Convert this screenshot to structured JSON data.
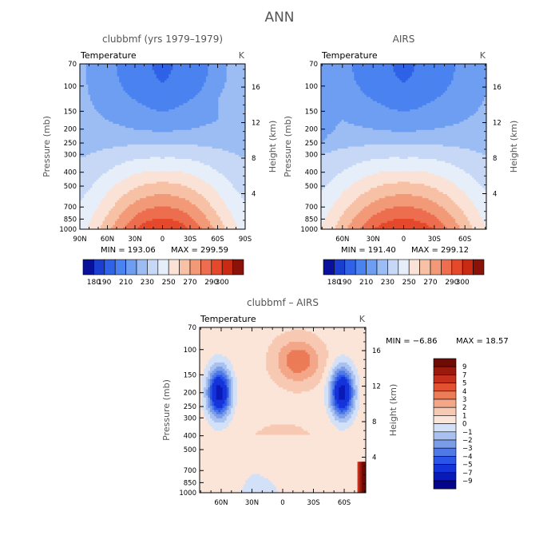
{
  "chart_data": {
    "type": "contour",
    "title": "ANN",
    "variable": "Temperature",
    "units": "K",
    "y_left_label": "Pressure (mb)",
    "y_right_label": "Height (km)",
    "pressure_ticks": [
      "70",
      "100",
      "150",
      "200",
      "250",
      "300",
      "400",
      "500",
      "700",
      "850",
      "1000"
    ],
    "height_ticks": [
      "4",
      "8",
      "12",
      "16"
    ],
    "panels": [
      {
        "id": "model",
        "title": "clubbmf (yrs 1979–1979)",
        "x_ticks": [
          "90N",
          "60N",
          "30N",
          "0",
          "30S",
          "60S",
          "90S"
        ],
        "min_label": "MIN = 193.06",
        "max_label": "MAX = 299.59",
        "min": 193.06,
        "max": 299.59,
        "colorbar_labels": [
          "180",
          "190",
          "210",
          "230",
          "250",
          "270",
          "290",
          "300"
        ]
      },
      {
        "id": "obs",
        "title": "AIRS",
        "x_ticks": [
          "60N",
          "30N",
          "0",
          "30S",
          "60S"
        ],
        "min_label": "MIN = 191.40",
        "max_label": "MAX = 299.12",
        "min": 191.4,
        "max": 299.12,
        "colorbar_labels": [
          "180",
          "190",
          "210",
          "230",
          "250",
          "270",
          "290",
          "300"
        ]
      },
      {
        "id": "diff",
        "title": "clubbmf – AIRS",
        "x_ticks": [
          "60N",
          "30N",
          "0",
          "30S",
          "60S"
        ],
        "min_label": "MIN =   −6.86",
        "max_label": "MAX =   18.57",
        "min": -6.86,
        "max": 18.57,
        "colorbar_labels": [
          "9",
          "7",
          "5",
          "4",
          "3",
          "2",
          "1",
          "0",
          "−1",
          "−2",
          "−3",
          "−4",
          "−5",
          "−7",
          "−9"
        ]
      }
    ],
    "abs_levels": [
      180,
      190,
      200,
      210,
      220,
      230,
      240,
      250,
      260,
      270,
      280,
      290,
      300
    ],
    "abs_colors": [
      "#08109c",
      "#1a3fd0",
      "#2f62e6",
      "#4a82f0",
      "#6e9ef2",
      "#9cbdf4",
      "#c6d8f6",
      "#e6eefa",
      "#fae3d6",
      "#f7c1a6",
      "#f29a78",
      "#ed6e4e",
      "#e5482a",
      "#c92a14",
      "#8a1208"
    ],
    "diff_levels": [
      -9,
      -7,
      -5,
      -4,
      -3,
      -2,
      -1,
      0,
      1,
      2,
      3,
      4,
      5,
      7,
      9
    ],
    "diff_colors": [
      "#04058a",
      "#0a1ab8",
      "#1434d9",
      "#2a55e8",
      "#4f7ae6",
      "#7b9de9",
      "#a9c1f0",
      "#d2e1f8",
      "#fbe4d8",
      "#f8c9b2",
      "#f3a788",
      "#ec7b58",
      "#e35230",
      "#c4301c",
      "#9a1a0d",
      "#6e0b05"
    ]
  }
}
